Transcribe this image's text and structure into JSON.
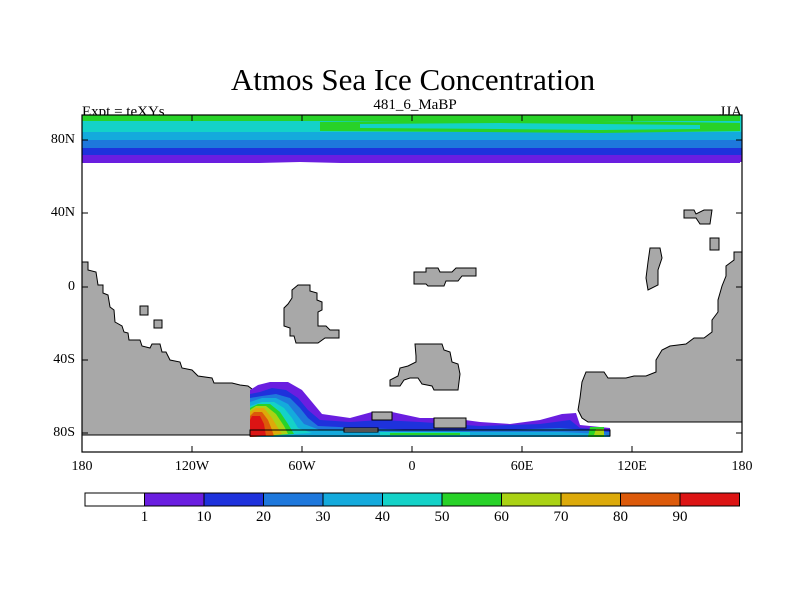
{
  "title": "Atmos Sea Ice Concentration",
  "left_label": "Expt = teXYs",
  "center_label": "481_6_MaBP",
  "right_label": "JJA",
  "lat_labels": [
    "80N",
    "40N",
    "0",
    "40S",
    "80S"
  ],
  "lon_labels": [
    "180",
    "120W",
    "60W",
    "0",
    "60E",
    "120E",
    "180"
  ],
  "colorbar": {
    "labels": [
      "1",
      "10",
      "20",
      "30",
      "40",
      "50",
      "60",
      "70",
      "80",
      "90"
    ],
    "colors": [
      "#ffffff",
      "#6a1ee0",
      "#1e32dc",
      "#1e78dc",
      "#14aadc",
      "#14d2c8",
      "#28d228",
      "#aad214",
      "#dcaa0a",
      "#dc5a0a",
      "#dc1414"
    ]
  },
  "land_color": "#a8a8a8"
}
